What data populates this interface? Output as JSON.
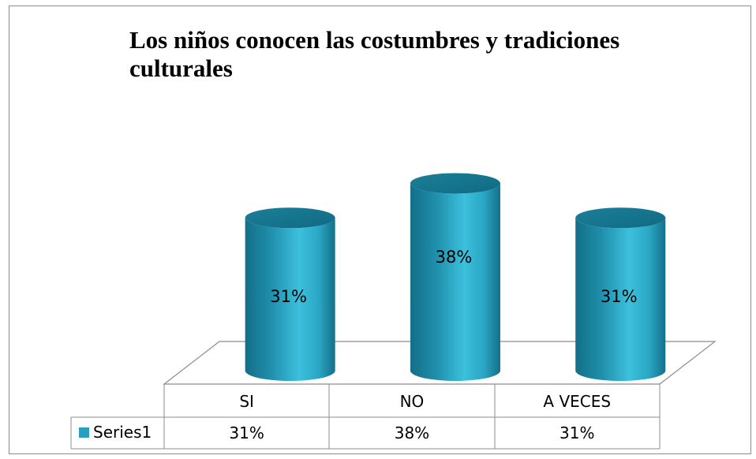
{
  "chart_data": {
    "type": "bar",
    "title": "Los niños conocen las costumbres y tradiciones culturales",
    "categories": [
      "SI",
      "NO",
      "A VECES"
    ],
    "series": [
      {
        "name": "Series1",
        "values": [
          31,
          38,
          31
        ],
        "labels": [
          "31%",
          "38%",
          "31%"
        ]
      }
    ],
    "data_table": {
      "row_label": "Series1",
      "cells": [
        "31%",
        "38%",
        "31%"
      ]
    },
    "value_unit": "%",
    "bar_shape": "cylinder",
    "bar_color": "#2a9fbd",
    "legend_placement": "data-table",
    "grid": false
  }
}
